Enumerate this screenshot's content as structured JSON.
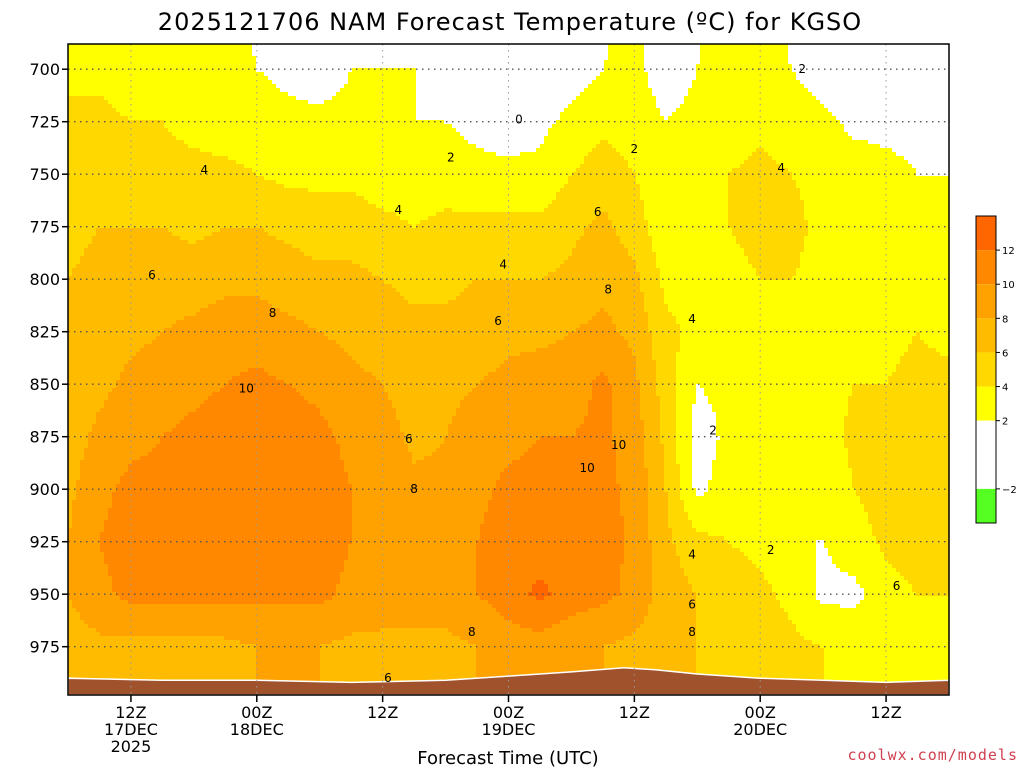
{
  "chart_data": {
    "type": "heatmap",
    "title": "2025121706 NAM Forecast Temperature (ºC) for KGSO",
    "xlabel": "Forecast Time (UTC)",
    "credit": "coolwx.com/models",
    "y_axis": {
      "levels": [
        700,
        725,
        750,
        775,
        800,
        825,
        850,
        875,
        900,
        925,
        950,
        975
      ],
      "labels": [
        "700",
        "725",
        "750",
        "775",
        "800",
        "825",
        "850",
        "875",
        "900",
        "925",
        "950",
        "975"
      ],
      "range_hpa": [
        688,
        998
      ],
      "inverted": true
    },
    "x_axis": {
      "range_hours_from_17DEC00Z": [
        6,
        90
      ],
      "ticks": [
        {
          "hour": 12,
          "lines": [
            "12Z",
            "17DEC",
            "2025"
          ]
        },
        {
          "hour": 24,
          "lines": [
            "00Z",
            "18DEC"
          ]
        },
        {
          "hour": 36,
          "lines": [
            "12Z"
          ]
        },
        {
          "hour": 48,
          "lines": [
            "00Z",
            "19DEC"
          ]
        },
        {
          "hour": 60,
          "lines": [
            "12Z"
          ]
        },
        {
          "hour": 72,
          "lines": [
            "00Z",
            "20DEC"
          ]
        },
        {
          "hour": 84,
          "lines": [
            "12Z"
          ]
        }
      ]
    },
    "grid": true,
    "colorbar": {
      "placement": "right",
      "ticks": [
        {
          "value": 12,
          "label": "12"
        },
        {
          "value": 10,
          "label": "10"
        },
        {
          "value": 8,
          "label": "8"
        },
        {
          "value": 6,
          "label": "6"
        },
        {
          "value": 4,
          "label": "4"
        },
        {
          "value": 2,
          "label": "2"
        },
        {
          "value": -2,
          "label": "−2"
        }
      ],
      "bins": [
        {
          "from": 12,
          "to": 14,
          "color": "#ff6600"
        },
        {
          "from": 10,
          "to": 12,
          "color": "#ff8800"
        },
        {
          "from": 8,
          "to": 10,
          "color": "#ffa200"
        },
        {
          "from": 6,
          "to": 8,
          "color": "#ffbb00"
        },
        {
          "from": 4,
          "to": 6,
          "color": "#ffd800"
        },
        {
          "from": 2,
          "to": 4,
          "color": "#ffff00"
        },
        {
          "from": -2,
          "to": 2,
          "color": "#ffffff"
        },
        {
          "from": -4,
          "to": -2,
          "color": "#55ff22"
        }
      ]
    },
    "colors": {
      "ground": "#a0522d",
      "zero_contour": "#c01080",
      "contour": "#000000",
      "grid": "#555555"
    },
    "temperature_profiles": [
      {
        "hour": 6,
        "temps": [
          3.5,
          4.5,
          5.0,
          5.5,
          6.0,
          6.0,
          6.5,
          7.0,
          7.5,
          8.0,
          8.0,
          7.0
        ]
      },
      {
        "hour": 9,
        "temps": [
          3.5,
          4.5,
          5.0,
          6.0,
          6.5,
          7.0,
          7.5,
          8.5,
          9.5,
          10.0,
          9.5,
          7.5
        ]
      },
      {
        "hour": 12,
        "temps": [
          3.0,
          4.0,
          5.0,
          6.0,
          6.5,
          7.5,
          8.5,
          9.5,
          10.5,
          11.0,
          10.5,
          7.5
        ]
      },
      {
        "hour": 15,
        "temps": [
          3.0,
          4.0,
          4.5,
          6.0,
          7.0,
          8.0,
          9.0,
          10.0,
          10.5,
          11.0,
          10.5,
          7.5
        ]
      },
      {
        "hour": 18,
        "temps": [
          2.5,
          3.5,
          4.5,
          5.5,
          7.0,
          8.5,
          9.5,
          10.5,
          10.5,
          10.5,
          10.5,
          7.5
        ]
      },
      {
        "hour": 21,
        "temps": [
          2.5,
          3.0,
          4.5,
          6.0,
          7.5,
          9.0,
          10.0,
          11.0,
          11.0,
          11.0,
          10.5,
          7.5
        ]
      },
      {
        "hour": 24,
        "temps": [
          2.0,
          3.0,
          4.0,
          6.0,
          7.5,
          9.0,
          10.5,
          11.0,
          11.5,
          11.0,
          10.5,
          8.0
        ]
      },
      {
        "hour": 27,
        "temps": [
          1.5,
          2.5,
          3.5,
          5.5,
          7.0,
          8.5,
          10.0,
          11.0,
          11.0,
          11.0,
          10.5,
          8.0
        ]
      },
      {
        "hour": 30,
        "temps": [
          1.0,
          2.5,
          3.5,
          5.0,
          6.5,
          8.0,
          9.5,
          10.5,
          11.0,
          11.0,
          10.5,
          8.0
        ]
      },
      {
        "hour": 33,
        "temps": [
          2.0,
          2.5,
          3.5,
          5.0,
          6.5,
          7.5,
          8.5,
          9.5,
          10.0,
          10.0,
          9.5,
          7.5
        ]
      },
      {
        "hour": 36,
        "temps": [
          2.0,
          2.5,
          3.0,
          4.5,
          6.0,
          7.0,
          8.0,
          9.0,
          9.5,
          9.5,
          9.0,
          7.5
        ]
      },
      {
        "hour": 39,
        "temps": [
          2.0,
          2.0,
          3.0,
          4.0,
          5.5,
          6.5,
          7.0,
          7.5,
          8.5,
          9.0,
          9.0,
          7.5
        ]
      },
      {
        "hour": 42,
        "temps": [
          1.5,
          2.0,
          3.0,
          4.5,
          5.5,
          6.5,
          7.5,
          8.0,
          8.5,
          9.0,
          9.0,
          7.5
        ]
      },
      {
        "hour": 45,
        "temps": [
          1.0,
          1.5,
          2.5,
          4.5,
          6.0,
          7.0,
          8.0,
          9.0,
          9.5,
          10.0,
          10.0,
          8.0
        ]
      },
      {
        "hour": 48,
        "temps": [
          0.0,
          1.0,
          2.5,
          4.5,
          6.0,
          7.5,
          8.5,
          9.5,
          10.5,
          11.0,
          11.0,
          9.0
        ]
      },
      {
        "hour": 51,
        "temps": [
          0.5,
          1.5,
          2.5,
          4.5,
          6.0,
          7.5,
          9.0,
          10.0,
          10.5,
          11.0,
          12.5,
          9.0
        ]
      },
      {
        "hour": 54,
        "temps": [
          1.0,
          2.5,
          4.0,
          5.5,
          6.5,
          8.0,
          9.0,
          10.0,
          10.5,
          11.0,
          11.0,
          8.5
        ]
      },
      {
        "hour": 57,
        "temps": [
          2.0,
          3.5,
          5.0,
          6.5,
          7.5,
          8.5,
          10.5,
          10.5,
          10.5,
          11.0,
          10.5,
          8.0
        ]
      },
      {
        "hour": 60,
        "temps": [
          2.5,
          3.0,
          4.0,
          5.0,
          6.5,
          7.5,
          8.5,
          9.0,
          9.5,
          9.5,
          9.5,
          7.5
        ]
      },
      {
        "hour": 63,
        "temps": [
          1.0,
          2.0,
          2.5,
          2.5,
          3.5,
          4.5,
          5.0,
          5.5,
          6.0,
          6.5,
          7.0,
          6.5
        ]
      },
      {
        "hour": 66,
        "temps": [
          2.0,
          2.5,
          3.5,
          3.5,
          3.0,
          3.5,
          2.0,
          1.0,
          1.5,
          4.5,
          6.0,
          6.0
        ]
      },
      {
        "hour": 69,
        "temps": [
          2.5,
          3.0,
          4.0,
          4.0,
          3.5,
          3.0,
          2.5,
          2.5,
          3.0,
          4.0,
          5.0,
          5.5
        ]
      },
      {
        "hour": 72,
        "temps": [
          2.5,
          3.5,
          4.5,
          4.5,
          4.0,
          3.5,
          3.0,
          3.0,
          3.0,
          3.5,
          4.5,
          5.0
        ]
      },
      {
        "hour": 75,
        "temps": [
          2.0,
          3.0,
          4.0,
          4.5,
          4.0,
          3.5,
          3.5,
          3.0,
          2.5,
          2.0,
          3.5,
          4.5
        ]
      },
      {
        "hour": 78,
        "temps": [
          1.0,
          2.5,
          3.5,
          3.5,
          3.5,
          3.5,
          3.5,
          3.0,
          2.5,
          2.0,
          1.5,
          4.0
        ]
      },
      {
        "hour": 81,
        "temps": [
          0.5,
          1.5,
          3.0,
          3.5,
          3.5,
          3.5,
          4.0,
          4.5,
          4.0,
          3.0,
          1.5,
          3.5
        ]
      },
      {
        "hour": 84,
        "temps": [
          0.5,
          1.5,
          2.5,
          3.0,
          3.5,
          3.5,
          4.0,
          5.0,
          5.0,
          4.5,
          3.0,
          3.5
        ]
      },
      {
        "hour": 87,
        "temps": [
          1.0,
          1.5,
          2.0,
          3.0,
          3.5,
          4.0,
          4.5,
          5.5,
          6.0,
          5.5,
          4.0,
          3.5
        ]
      },
      {
        "hour": 90,
        "temps": [
          0.5,
          1.0,
          2.0,
          3.0,
          3.5,
          3.5,
          4.5,
          5.5,
          5.5,
          5.0,
          4.0,
          3.5
        ]
      }
    ],
    "surface_pressure_hpa": [
      {
        "hour": 6,
        "p": 990
      },
      {
        "hour": 15,
        "p": 991
      },
      {
        "hour": 24,
        "p": 991
      },
      {
        "hour": 33,
        "p": 992
      },
      {
        "hour": 42,
        "p": 991
      },
      {
        "hour": 48,
        "p": 989
      },
      {
        "hour": 54,
        "p": 987
      },
      {
        "hour": 59,
        "p": 985
      },
      {
        "hour": 62,
        "p": 986
      },
      {
        "hour": 66,
        "p": 988
      },
      {
        "hour": 72,
        "p": 990
      },
      {
        "hour": 78,
        "p": 991
      },
      {
        "hour": 84,
        "p": 992
      },
      {
        "hour": 90,
        "p": 991
      }
    ],
    "contour_labels": [
      {
        "text": "0",
        "hour": 49.0,
        "p": 724
      },
      {
        "text": "2",
        "hour": 60.0,
        "p": 738
      },
      {
        "text": "2",
        "hour": 42.5,
        "p": 742
      },
      {
        "text": "2",
        "hour": 76.0,
        "p": 700
      },
      {
        "text": "2",
        "hour": 67.5,
        "p": 872
      },
      {
        "text": "2",
        "hour": 73.0,
        "p": 929
      },
      {
        "text": "4",
        "hour": 19.0,
        "p": 748
      },
      {
        "text": "4",
        "hour": 37.5,
        "p": 767
      },
      {
        "text": "4",
        "hour": 47.5,
        "p": 793
      },
      {
        "text": "4",
        "hour": 65.5,
        "p": 819
      },
      {
        "text": "4",
        "hour": 74.0,
        "p": 747
      },
      {
        "text": "4",
        "hour": 65.5,
        "p": 931
      },
      {
        "text": "6",
        "hour": 14.0,
        "p": 798
      },
      {
        "text": "6",
        "hour": 47.0,
        "p": 820
      },
      {
        "text": "6",
        "hour": 56.5,
        "p": 768
      },
      {
        "text": "6",
        "hour": 38.5,
        "p": 876
      },
      {
        "text": "6",
        "hour": 65.5,
        "p": 955
      },
      {
        "text": "6",
        "hour": 36.5,
        "p": 990
      },
      {
        "text": "6",
        "hour": 85.0,
        "p": 946
      },
      {
        "text": "8",
        "hour": 25.5,
        "p": 816
      },
      {
        "text": "8",
        "hour": 57.5,
        "p": 805
      },
      {
        "text": "8",
        "hour": 39.0,
        "p": 900
      },
      {
        "text": "8",
        "hour": 44.5,
        "p": 968
      },
      {
        "text": "8",
        "hour": 65.5,
        "p": 968
      },
      {
        "text": "10",
        "hour": 23.0,
        "p": 852
      },
      {
        "text": "10",
        "hour": 58.5,
        "p": 879
      },
      {
        "text": "10",
        "hour": 55.5,
        "p": 890
      }
    ]
  }
}
